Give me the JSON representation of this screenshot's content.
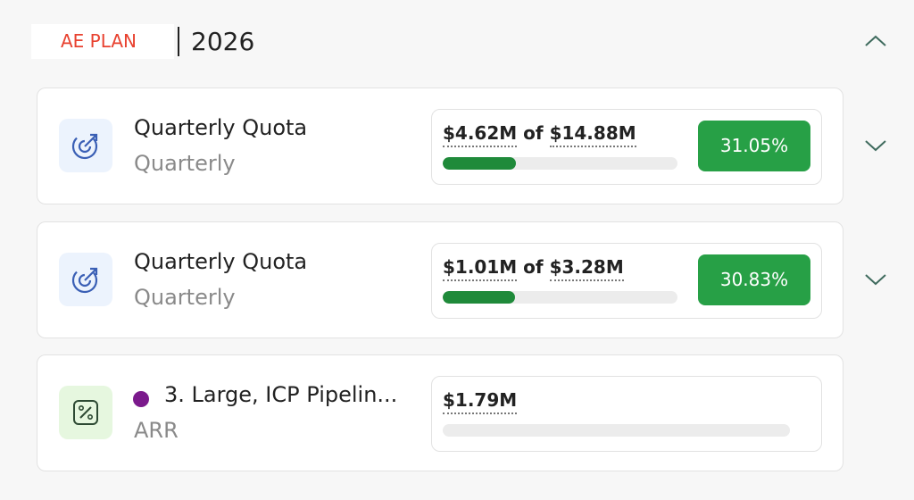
{
  "header": {
    "label": "AE PLAN",
    "year": "2026"
  },
  "cards": [
    {
      "title": "Quarterly Quota",
      "subtitle": "Quarterly",
      "icon": "target",
      "value": "$4.62M",
      "of": "of",
      "target": "$14.88M",
      "percent": {
        "value": 31.05,
        "label": "31.05%"
      }
    },
    {
      "title": "Quarterly Quota",
      "subtitle": "Quarterly",
      "icon": "target",
      "value": "$1.01M",
      "of": "of",
      "target": "$3.28M",
      "percent": {
        "value": 30.83,
        "label": "30.83%"
      }
    },
    {
      "title": "3. Large, ICP Pipelin...",
      "subtitle": "ARR",
      "icon": "percent",
      "dot_color": "#7b1a8c",
      "value": "$1.79M"
    }
  ]
}
